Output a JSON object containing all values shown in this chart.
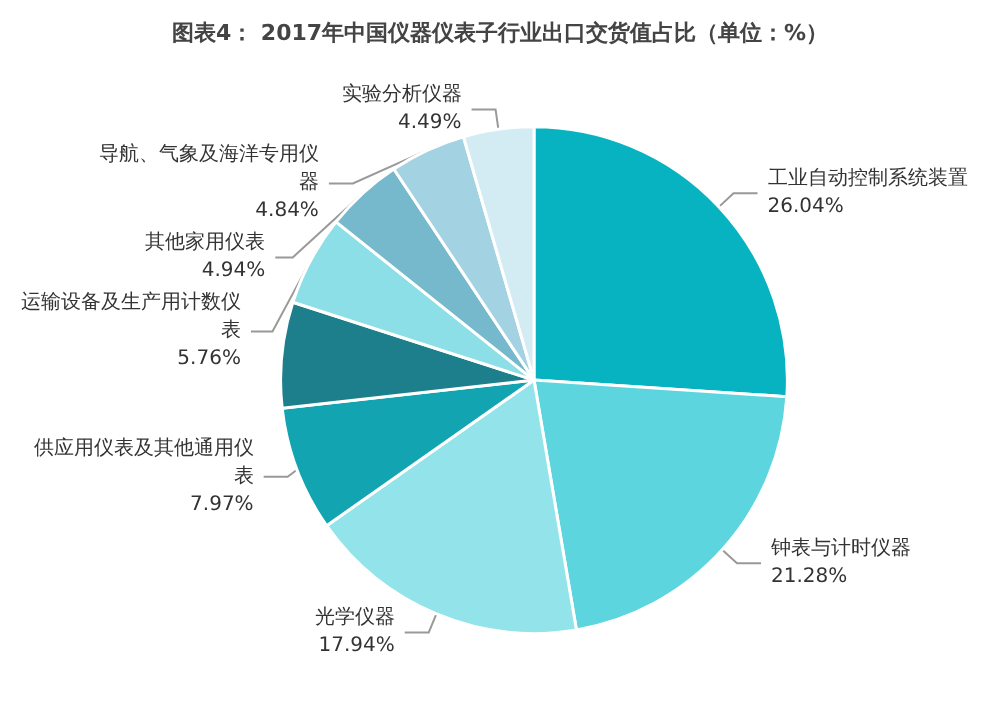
{
  "chart_data": {
    "type": "pie",
    "title": "图表4： 2017年中国仪器仪表子行业出口交货值占比（单位：%）",
    "categories": [
      "工业自动控制系统装置",
      "钟表与计时仪器",
      "光学仪器",
      "供应用仪表及其他通用仪表",
      null,
      "运输设备及生产用计数仪表",
      "其他家用仪表",
      "导航、气象及海洋专用仪器",
      "实验分析仪器"
    ],
    "values": [
      26.04,
      21.28,
      17.94,
      7.97,
      6.74,
      5.76,
      4.94,
      4.84,
      4.49
    ],
    "value_labels": [
      "26.04%",
      "21.28%",
      "17.94%",
      "7.97%",
      null,
      "5.76%",
      "4.94%",
      "4.84%",
      "4.49%"
    ],
    "colors": [
      "#07b3c0",
      "#5cd5de",
      "#92e3ea",
      "#13a4b1",
      "#1d7f8c",
      "#8ddfe7",
      "#76b8cc",
      "#a3d2e2",
      "#d3ebf3"
    ]
  }
}
